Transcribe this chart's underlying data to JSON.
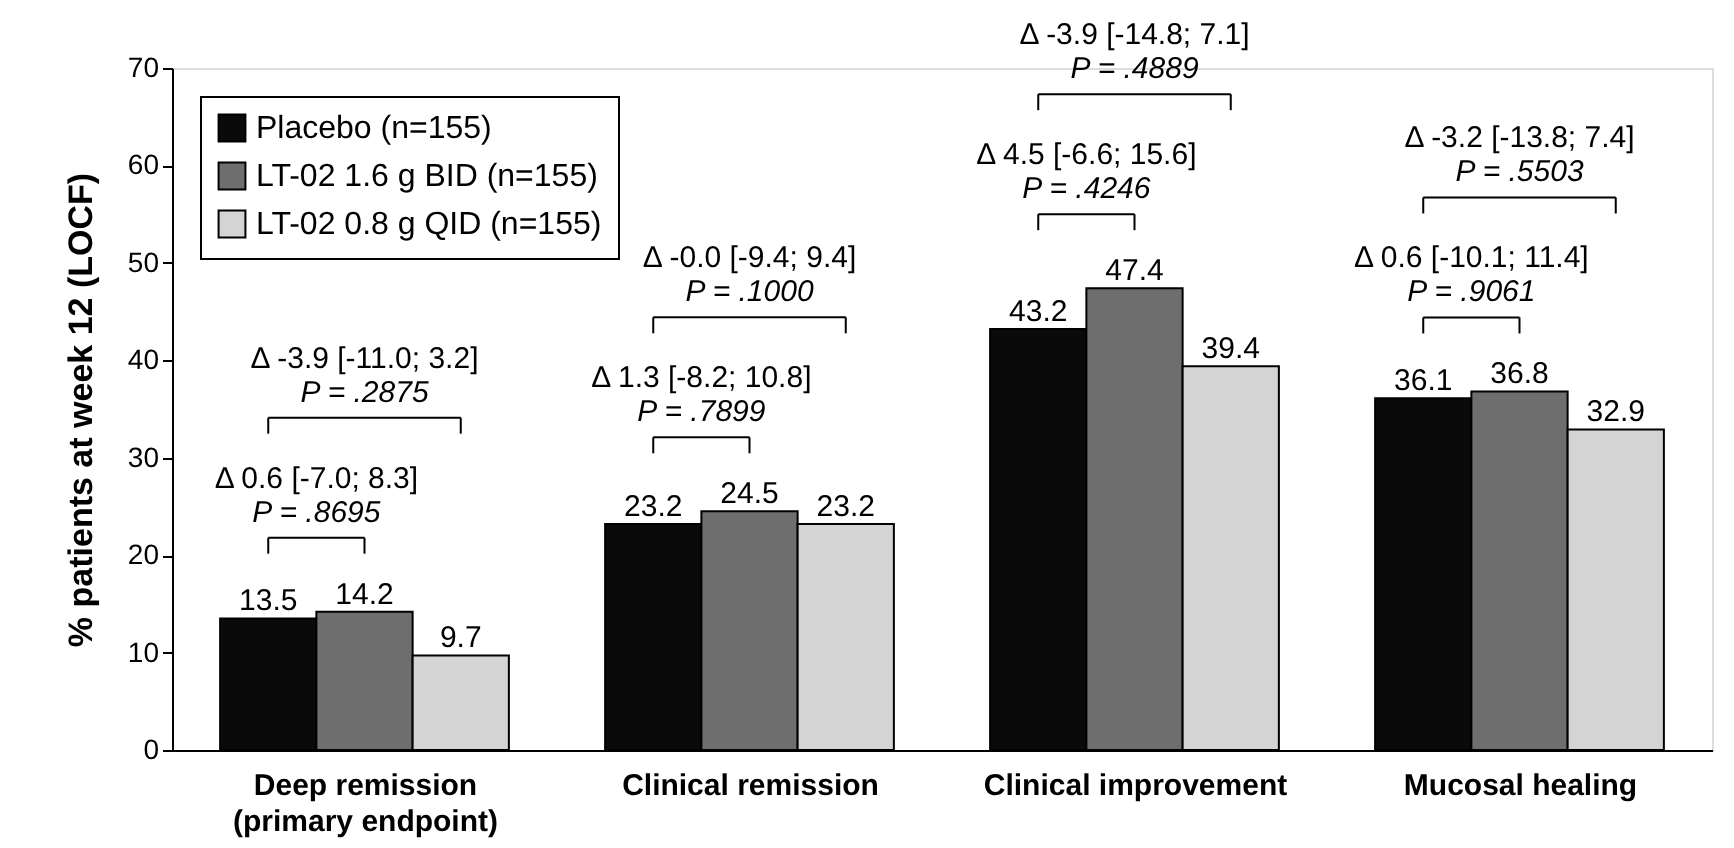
{
  "chart_data": {
    "type": "bar",
    "ylabel": "% patients at week 12 (LOCF)",
    "categories": [
      "Deep remission\n(primary endpoint)",
      "Clinical remission",
      "Clinical improvement",
      "Mucosal healing"
    ],
    "series": [
      {
        "name": "Placebo (n=155)",
        "color": "#0a0a0a",
        "values": [
          13.5,
          23.2,
          43.2,
          36.1
        ]
      },
      {
        "name": "LT-02 1.6 g BID (n=155)",
        "color": "#6e6e6e",
        "values": [
          14.2,
          24.5,
          47.4,
          36.8
        ]
      },
      {
        "name": "LT-02 0.8 g QID (n=155)",
        "color": "#d4d4d4",
        "values": [
          9.7,
          23.2,
          39.4,
          32.9
        ]
      }
    ],
    "ylim": [
      0,
      70
    ],
    "yticks": [
      0,
      10,
      20,
      30,
      40,
      50,
      60,
      70
    ],
    "grid": false,
    "legend": "top left",
    "data_labels": true,
    "annotations": [
      "Δ 0.6 [-7.0; 8.3]",
      "P = .8695",
      "Δ -3.9 [-11.0; 3.2]",
      "P = .2875",
      "Δ 1.3 [-8.2; 10.8]",
      "P = .7899",
      "Δ -0.0 [-9.4; 9.4]",
      "P = .1000",
      "Δ 4.5 [-6.6; 15.6]",
      "P = .4246",
      "Δ -3.9 [-14.8; 7.1]",
      "P = .4889",
      "Δ 0.6 [-10.1; 11.4]",
      "P = .9061",
      "Δ -3.2 [-13.8; 7.4]",
      "P = .5503"
    ]
  }
}
